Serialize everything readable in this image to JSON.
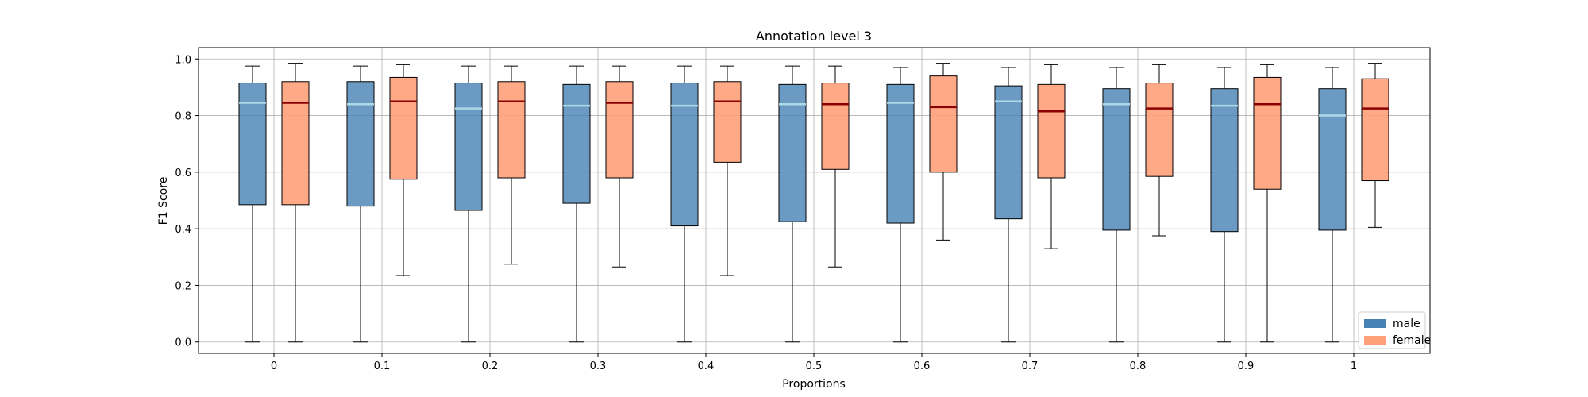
{
  "chart_data": {
    "type": "box",
    "title": "Annotation level 3",
    "xlabel": "Proportions",
    "ylabel": "F1 Score",
    "ylim": [
      -0.04,
      1.04
    ],
    "yticks": [
      "0.0",
      "0.2",
      "0.4",
      "0.6",
      "0.8",
      "1.0"
    ],
    "ytick_values": [
      0,
      0.2,
      0.4,
      0.6,
      0.8,
      1.0
    ],
    "categories": [
      "0",
      "0.1",
      "0.2",
      "0.3",
      "0.4",
      "0.5",
      "0.6",
      "0.7",
      "0.8",
      "0.9",
      "1"
    ],
    "grid": true,
    "legend_position": "bottom-right",
    "series": [
      {
        "name": "male",
        "box_color": "#4682B4",
        "median_color": "#ADD8E6",
        "boxes": [
          {
            "whislo": 0.0,
            "q1": 0.485,
            "med": 0.845,
            "q3": 0.915,
            "whishi": 0.975
          },
          {
            "whislo": 0.0,
            "q1": 0.48,
            "med": 0.84,
            "q3": 0.92,
            "whishi": 0.975
          },
          {
            "whislo": 0.0,
            "q1": 0.465,
            "med": 0.825,
            "q3": 0.915,
            "whishi": 0.975
          },
          {
            "whislo": 0.0,
            "q1": 0.49,
            "med": 0.835,
            "q3": 0.91,
            "whishi": 0.975
          },
          {
            "whislo": 0.0,
            "q1": 0.41,
            "med": 0.835,
            "q3": 0.915,
            "whishi": 0.975
          },
          {
            "whislo": 0.0,
            "q1": 0.425,
            "med": 0.84,
            "q3": 0.91,
            "whishi": 0.975
          },
          {
            "whislo": 0.0,
            "q1": 0.42,
            "med": 0.845,
            "q3": 0.91,
            "whishi": 0.97
          },
          {
            "whislo": 0.0,
            "q1": 0.435,
            "med": 0.85,
            "q3": 0.905,
            "whishi": 0.97
          },
          {
            "whislo": 0.0,
            "q1": 0.395,
            "med": 0.84,
            "q3": 0.895,
            "whishi": 0.97
          },
          {
            "whislo": 0.0,
            "q1": 0.39,
            "med": 0.835,
            "q3": 0.895,
            "whishi": 0.97
          },
          {
            "whislo": 0.0,
            "q1": 0.395,
            "med": 0.8,
            "q3": 0.895,
            "whishi": 0.97
          }
        ]
      },
      {
        "name": "female",
        "box_color": "#FFA07A",
        "median_color": "#8B0000",
        "boxes": [
          {
            "whislo": 0.0,
            "q1": 0.485,
            "med": 0.845,
            "q3": 0.92,
            "whishi": 0.985
          },
          {
            "whislo": 0.235,
            "q1": 0.575,
            "med": 0.85,
            "q3": 0.935,
            "whishi": 0.98
          },
          {
            "whislo": 0.275,
            "q1": 0.58,
            "med": 0.85,
            "q3": 0.92,
            "whishi": 0.975
          },
          {
            "whislo": 0.265,
            "q1": 0.58,
            "med": 0.845,
            "q3": 0.92,
            "whishi": 0.975
          },
          {
            "whislo": 0.235,
            "q1": 0.635,
            "med": 0.85,
            "q3": 0.92,
            "whishi": 0.975
          },
          {
            "whislo": 0.265,
            "q1": 0.61,
            "med": 0.84,
            "q3": 0.915,
            "whishi": 0.975
          },
          {
            "whislo": 0.36,
            "q1": 0.6,
            "med": 0.83,
            "q3": 0.94,
            "whishi": 0.985
          },
          {
            "whislo": 0.33,
            "q1": 0.58,
            "med": 0.815,
            "q3": 0.91,
            "whishi": 0.98
          },
          {
            "whislo": 0.375,
            "q1": 0.585,
            "med": 0.825,
            "q3": 0.915,
            "whishi": 0.98
          },
          {
            "whislo": 0.0,
            "q1": 0.54,
            "med": 0.84,
            "q3": 0.935,
            "whishi": 0.98
          },
          {
            "whislo": 0.405,
            "q1": 0.57,
            "med": 0.825,
            "q3": 0.93,
            "whishi": 0.985
          }
        ]
      }
    ]
  }
}
